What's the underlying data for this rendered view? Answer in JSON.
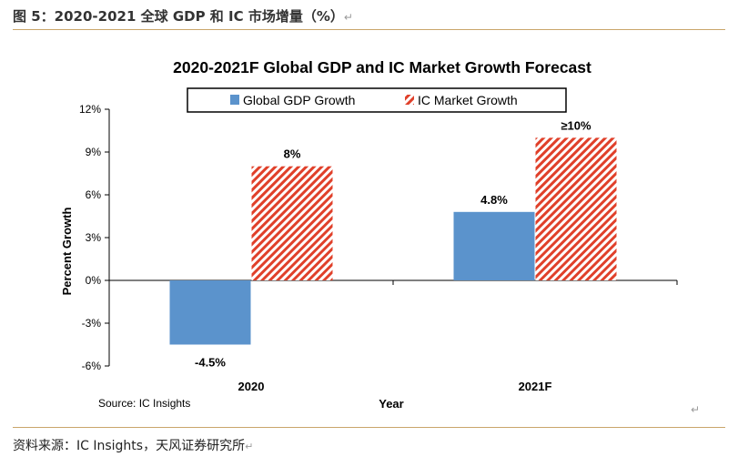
{
  "caption": {
    "text": "图 5：2020-2021 全球 GDP 和 IC 市场增量（%）",
    "return_mark": "↵"
  },
  "source_note": {
    "text": "资料来源：IC Insights，天风证券研究所",
    "return_mark": "↵"
  },
  "colors": {
    "gdp": "#5b93cc",
    "ic_stripe": "#e0402a",
    "rule": "#c9a66b"
  },
  "chart_data": {
    "type": "bar",
    "title": "2020-2021F Global GDP and IC Market Growth Forecast",
    "xlabel": "Year",
    "ylabel": "Percent Growth",
    "ylim": [
      -6,
      12
    ],
    "yticks": [
      12,
      9,
      6,
      3,
      0,
      -3,
      -6
    ],
    "ytick_labels": [
      "12%",
      "9%",
      "6%",
      "3%",
      "0%",
      "-3%",
      "-6%"
    ],
    "categories": [
      "2020",
      "2021F"
    ],
    "series": [
      {
        "name": "Global GDP Growth",
        "values": [
          -4.5,
          4.8
        ],
        "labels": [
          "-4.5%",
          "4.8%"
        ],
        "pattern": "solid"
      },
      {
        "name": "IC Market Growth",
        "values": [
          8,
          10
        ],
        "labels": [
          "8%",
          "≥10%"
        ],
        "pattern": "hatched"
      }
    ],
    "legend_position": "top-center",
    "source": "Source: IC Insights",
    "return_mark": "↵"
  }
}
